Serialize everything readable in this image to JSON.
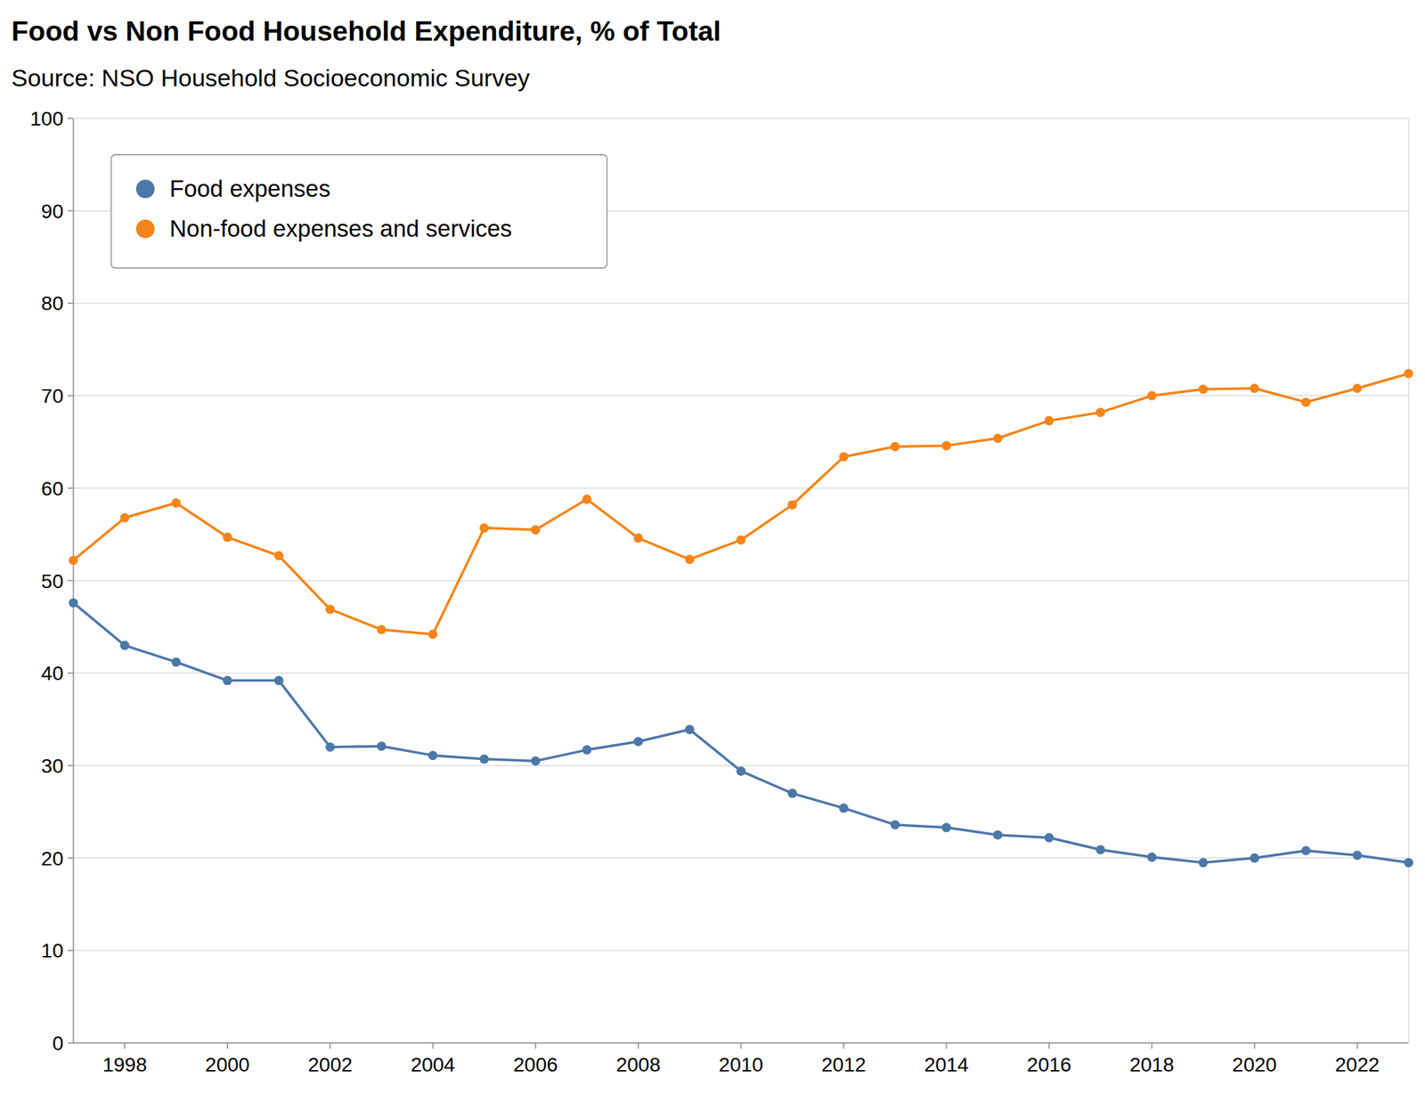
{
  "chart_data": {
    "type": "line",
    "title": "Food vs Non Food Household Expenditure, % of Total",
    "subtitle": "Source: NSO Household Socioeconomic Survey",
    "x": [
      1997,
      1998,
      1999,
      2000,
      2001,
      2002,
      2003,
      2004,
      2005,
      2006,
      2007,
      2008,
      2009,
      2010,
      2011,
      2012,
      2013,
      2014,
      2015,
      2016,
      2017,
      2018,
      2019,
      2020,
      2021,
      2022,
      2023
    ],
    "series": [
      {
        "name": "Food expenses",
        "color": "#4c78a8",
        "values": [
          47.6,
          43.0,
          41.2,
          39.2,
          39.2,
          32.0,
          32.1,
          31.1,
          30.7,
          30.5,
          31.7,
          32.6,
          33.9,
          29.4,
          27.0,
          25.4,
          23.6,
          23.3,
          22.5,
          22.2,
          20.9,
          20.1,
          19.5,
          20.0,
          20.8,
          20.3,
          19.5
        ]
      },
      {
        "name": "Non-food expenses and services",
        "color": "#f58518",
        "values": [
          52.2,
          56.8,
          58.4,
          54.7,
          52.7,
          46.9,
          44.7,
          44.2,
          55.7,
          55.5,
          58.8,
          54.6,
          52.3,
          54.4,
          58.2,
          63.4,
          64.5,
          64.6,
          65.4,
          67.3,
          68.2,
          70.0,
          70.7,
          70.8,
          69.3,
          70.8,
          72.4
        ]
      }
    ],
    "xlim": [
      1997,
      2023
    ],
    "xticks": [
      1998,
      2000,
      2002,
      2004,
      2006,
      2008,
      2010,
      2012,
      2014,
      2016,
      2018,
      2020,
      2022
    ],
    "ylim": [
      0,
      100
    ],
    "yticks": [
      0,
      10,
      20,
      30,
      40,
      50,
      60,
      70,
      80,
      90,
      100
    ],
    "grid": true,
    "legend": "top-left",
    "marker": "circle"
  }
}
